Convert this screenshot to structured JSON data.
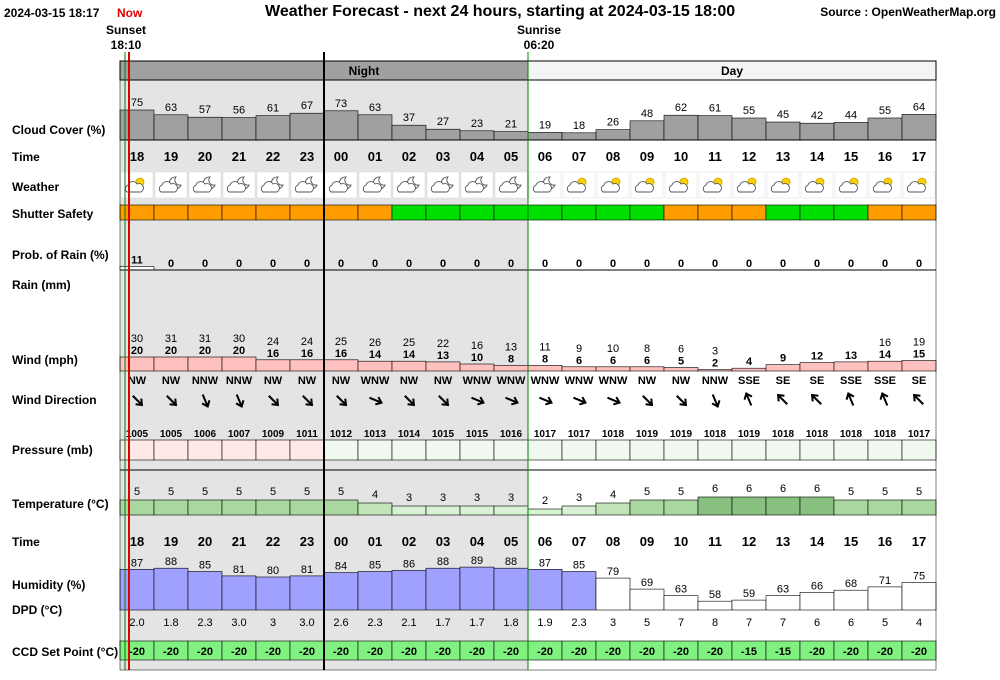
{
  "header": {
    "timestamp": "2024-03-15 18:17",
    "now_label": "Now",
    "title": "Weather Forecast - next 24 hours, starting at 2024-03-15 18:00",
    "source": "Source : OpenWeatherMap.org",
    "sunset_label": "Sunset",
    "sunset_time": "18:10",
    "sunrise_label": "Sunrise",
    "sunrise_time": "06:20",
    "night_label": "Night",
    "day_label": "Day"
  },
  "labels": {
    "cloud": "Cloud Cover (%)",
    "time": "Time",
    "weather": "Weather",
    "shutter": "Shutter Safety",
    "rain_prob": "Prob. of Rain (%)",
    "rain": "Rain (mm)",
    "wind": "Wind (mph)",
    "wind_dir": "Wind Direction",
    "pressure": "Pressure (mb)",
    "temperature": "Temperature (°C)",
    "time2": "Time",
    "humidity": "Humidity (%)",
    "dpd": "DPD (°C)",
    "ccd": "CCD Set Point (°C)"
  },
  "hours": [
    "18",
    "19",
    "20",
    "21",
    "22",
    "23",
    "00",
    "01",
    "02",
    "03",
    "04",
    "05",
    "06",
    "07",
    "08",
    "09",
    "10",
    "11",
    "12",
    "13",
    "14",
    "15",
    "16",
    "17"
  ],
  "night_flags": [
    1,
    1,
    1,
    1,
    1,
    1,
    1,
    1,
    1,
    1,
    1,
    1,
    0,
    0,
    0,
    0,
    0,
    0,
    0,
    0,
    0,
    0,
    0,
    0
  ],
  "cloud_cover": [
    75,
    63,
    57,
    56,
    61,
    67,
    73,
    63,
    37,
    27,
    23,
    21,
    19,
    18,
    26,
    48,
    62,
    61,
    55,
    45,
    42,
    44,
    55,
    64
  ],
  "weather_icons": [
    "partly-cloudy-day-icon",
    "partly-cloudy-night-icon",
    "partly-cloudy-night-icon",
    "partly-cloudy-night-icon",
    "partly-cloudy-night-icon",
    "partly-cloudy-night-icon",
    "partly-cloudy-night-icon",
    "partly-cloudy-night-icon",
    "moon-cloud-icon",
    "moon-cloud-icon",
    "moon-cloud-icon",
    "moon-cloud-icon",
    "moon-cloud-icon",
    "sun-cloud-icon",
    "sun-cloud-icon",
    "sun-cloud-icon",
    "partly-cloudy-day-icon",
    "partly-cloudy-day-icon",
    "partly-cloudy-day-icon",
    "sun-cloud-icon",
    "sun-cloud-icon",
    "sun-cloud-icon",
    "partly-cloudy-day-icon",
    "partly-cloudy-day-icon"
  ],
  "shutter_safety": [
    "caution",
    "caution",
    "caution",
    "caution",
    "caution",
    "caution",
    "caution",
    "caution",
    "safe",
    "safe",
    "safe",
    "safe",
    "safe",
    "safe",
    "safe",
    "safe",
    "caution",
    "caution",
    "caution",
    "safe",
    "safe",
    "safe",
    "caution",
    "caution"
  ],
  "rain_prob": [
    11,
    0,
    0,
    0,
    0,
    0,
    0,
    0,
    0,
    0,
    0,
    0,
    0,
    0,
    0,
    0,
    0,
    0,
    0,
    0,
    0,
    0,
    0,
    0
  ],
  "wind_gust": [
    30,
    31,
    31,
    30,
    24,
    24,
    25,
    26,
    25,
    22,
    16,
    13,
    11,
    9,
    10,
    8,
    6,
    3,
    "",
    "",
    "",
    "",
    16,
    19
  ],
  "wind_speed": [
    20,
    20,
    20,
    20,
    16,
    16,
    16,
    14,
    14,
    13,
    10,
    8,
    8,
    6,
    6,
    6,
    5,
    2,
    4,
    9,
    12,
    13,
    14,
    15
  ],
  "wind_dir": [
    "NW",
    "NW",
    "NNW",
    "NNW",
    "NW",
    "NW",
    "NW",
    "WNW",
    "NW",
    "NW",
    "WNW",
    "WNW",
    "WNW",
    "WNW",
    "WNW",
    "NW",
    "NW",
    "NNW",
    "SSE",
    "SE",
    "SE",
    "SSE",
    "SSE",
    "SE"
  ],
  "pressure": [
    1005,
    1005,
    1006,
    1007,
    1009,
    1011,
    1012,
    1013,
    1014,
    1015,
    1015,
    1016,
    1017,
    1017,
    1018,
    1019,
    1019,
    1018,
    1019,
    1018,
    1018,
    1018,
    1018,
    1017
  ],
  "temperature": [
    5,
    5,
    5,
    5,
    5,
    5,
    5,
    4,
    3,
    3,
    3,
    3,
    2,
    3,
    4,
    5,
    5,
    6,
    6,
    6,
    6,
    5,
    5,
    5
  ],
  "humidity": [
    87,
    88,
    85,
    81,
    80,
    81,
    84,
    85,
    86,
    88,
    89,
    88,
    87,
    85,
    79,
    69,
    63,
    58,
    59,
    63,
    66,
    68,
    71,
    75
  ],
  "dpd": [
    "2.0",
    "1.8",
    "2.3",
    "3.0",
    "3",
    "3.0",
    "2.6",
    "2.3",
    "2.1",
    "1.7",
    "1.7",
    "1.8",
    "1.9",
    "2.3",
    "3",
    "5",
    "7",
    "8",
    "7",
    "7",
    "6",
    "6",
    "5",
    "4"
  ],
  "ccd_set_point": [
    -20,
    -20,
    -20,
    -20,
    -20,
    -20,
    -20,
    -20,
    -20,
    -20,
    -20,
    -20,
    -20,
    -20,
    -20,
    -20,
    -20,
    -20,
    -15,
    -15,
    -20,
    -20,
    -20,
    -20
  ],
  "colors": {
    "night_shade": "#e4e4e4",
    "cloud_bar": "#a0a0a0",
    "shutter_safe": "#00e000",
    "shutter_caution": "#ff9c00",
    "wind_bar": "#ffc0c0",
    "pressure_bar": "#ffe0e0",
    "temp_bar": "#a8d8a0",
    "humidity_bar": "#a0a0ff",
    "ccd_bar": "#80f080",
    "now_line": "#e00000",
    "sunset_line": "#008000"
  }
}
